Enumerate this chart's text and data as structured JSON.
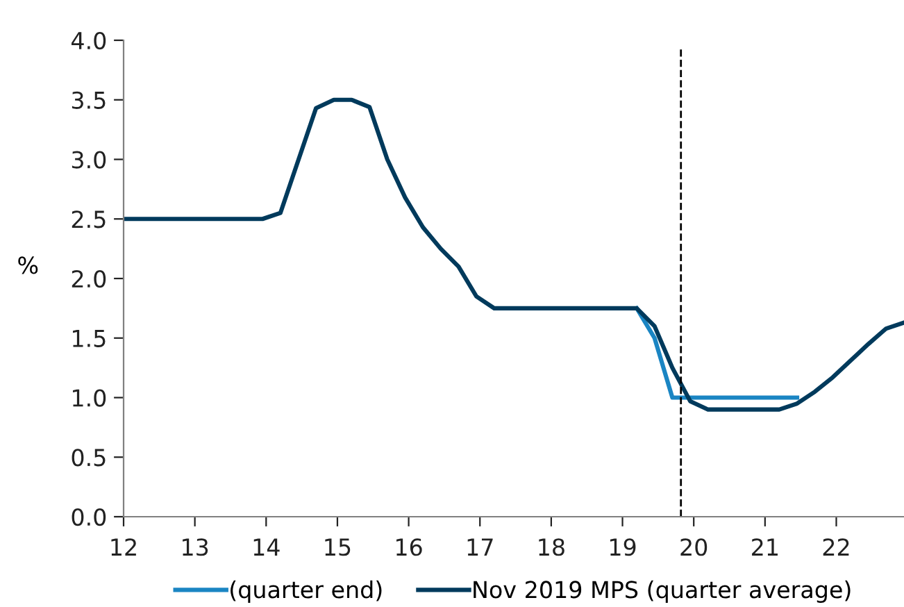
{
  "chart_data": {
    "type": "line",
    "ylabel": "%",
    "xlim": [
      12,
      22.95
    ],
    "xticks": [
      12,
      13,
      14,
      15,
      16,
      17,
      18,
      19,
      20,
      21,
      22
    ],
    "ylim": [
      0,
      4
    ],
    "yticks": [
      {
        "value": 0,
        "label": "0.0"
      },
      {
        "value": 0.5,
        "label": "0.5"
      },
      {
        "value": 1,
        "label": "1.0"
      },
      {
        "value": 1.5,
        "label": "1.5"
      },
      {
        "value": 2,
        "label": "2.0"
      },
      {
        "value": 2.5,
        "label": "2.5"
      },
      {
        "value": 3,
        "label": "3.0"
      },
      {
        "value": 3.5,
        "label": "3.5"
      },
      {
        "value": 4,
        "label": "4.0"
      }
    ],
    "series": [
      {
        "name": "(quarter end)",
        "color": "#1a85c3",
        "x": [
          19.2,
          19.45,
          19.7,
          21.45
        ],
        "values": [
          1.75,
          1.5,
          1.0,
          1.0
        ]
      },
      {
        "name": "Nov 2019 MPS (quarter average)",
        "color": "#003a5c",
        "x": [
          12,
          13.95,
          14.2,
          14.7,
          14.95,
          15.2,
          15.45,
          15.7,
          15.95,
          16.2,
          16.45,
          16.7,
          16.95,
          17.2,
          19.2,
          19.45,
          19.7,
          19.95,
          20.2,
          21.2,
          21.45,
          21.7,
          21.95,
          22.2,
          22.45,
          22.7,
          22.95
        ],
        "values": [
          2.5,
          2.5,
          2.55,
          3.43,
          3.5,
          3.5,
          3.44,
          3.0,
          2.68,
          2.43,
          2.25,
          2.1,
          1.85,
          1.75,
          1.75,
          1.6,
          1.25,
          0.97,
          0.9,
          0.9,
          0.95,
          1.05,
          1.17,
          1.31,
          1.45,
          1.58,
          1.63
        ]
      }
    ],
    "ref_lines": [
      {
        "axis": "x",
        "value": 19.82,
        "color": "#000000",
        "line_style": "dashed"
      }
    ],
    "grid": false,
    "legend": "bottom",
    "marker": "none",
    "line_style": "solid"
  }
}
